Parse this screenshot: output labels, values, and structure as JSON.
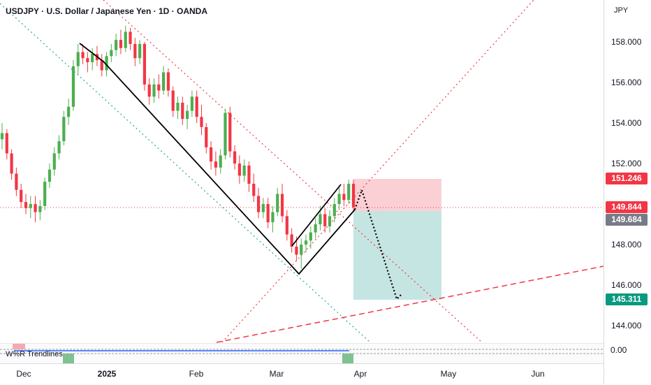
{
  "header": {
    "title": "USDJPY · U.S. Dollar / Japanese Yen · 1D · OANDA"
  },
  "yaxis": {
    "currency": "JPY",
    "ticks": [
      "158.000",
      "156.000",
      "154.000",
      "152.000",
      "148.000",
      "146.000",
      "144.000"
    ]
  },
  "price_badges": {
    "upper": {
      "label": "151.246",
      "color": "#f23645"
    },
    "current": {
      "label": "149.844",
      "color": "#f23645"
    },
    "entry": {
      "label": "149.684",
      "color": "#787b86"
    },
    "target": {
      "label": "145.311",
      "color": "#089981"
    }
  },
  "xaxis": {
    "ticks": [
      {
        "label": "Dec",
        "bold": false
      },
      {
        "label": "2025",
        "bold": true
      },
      {
        "label": "Feb",
        "bold": false
      },
      {
        "label": "Mar",
        "bold": false
      },
      {
        "label": "Apr",
        "bold": false
      },
      {
        "label": "May",
        "bold": false
      },
      {
        "label": "Jun",
        "bold": false
      }
    ]
  },
  "indicator": {
    "label": "W%R Trendlines",
    "zero_label": "0.00"
  },
  "colors": {
    "up": "#089981",
    "down": "#f23645",
    "candle_up": "#4caf50",
    "candle_down": "#f23645"
  },
  "chart_data": {
    "type": "candlestick",
    "title": "USDJPY · U.S. Dollar / Japanese Yen · 1D · OANDA",
    "ylim": [
      142.9,
      160.1
    ],
    "position": {
      "stop": 151.246,
      "entry": 149.684,
      "target": 145.311,
      "last": 149.844
    },
    "candles": [
      [
        153.2,
        154.0,
        152.7,
        153.5
      ],
      [
        153.5,
        153.7,
        152.2,
        152.5
      ],
      [
        152.5,
        152.7,
        151.2,
        151.5
      ],
      [
        151.5,
        151.8,
        150.4,
        150.7
      ],
      [
        150.7,
        151.0,
        149.8,
        150.1
      ],
      [
        150.1,
        150.5,
        149.5,
        149.8
      ],
      [
        149.8,
        150.4,
        149.3,
        150.0
      ],
      [
        150.0,
        150.4,
        149.1,
        149.6
      ],
      [
        149.6,
        150.2,
        149.2,
        149.9
      ],
      [
        149.9,
        151.3,
        149.7,
        151.1
      ],
      [
        151.1,
        152.0,
        150.8,
        151.7
      ],
      [
        151.7,
        152.8,
        151.4,
        152.5
      ],
      [
        152.5,
        153.4,
        152.2,
        153.1
      ],
      [
        153.1,
        154.6,
        152.9,
        154.3
      ],
      [
        154.3,
        155.2,
        153.9,
        154.8
      ],
      [
        154.8,
        157.1,
        154.6,
        156.8
      ],
      [
        156.8,
        157.9,
        156.4,
        157.5
      ],
      [
        157.5,
        157.9,
        156.9,
        157.2
      ],
      [
        157.2,
        157.5,
        156.5,
        157.0
      ],
      [
        157.0,
        157.7,
        156.6,
        157.4
      ],
      [
        157.4,
        157.8,
        156.8,
        157.1
      ],
      [
        157.1,
        157.4,
        156.3,
        156.6
      ],
      [
        156.6,
        157.5,
        156.3,
        157.3
      ],
      [
        157.3,
        157.9,
        157.0,
        157.6
      ],
      [
        157.6,
        158.4,
        157.3,
        158.1
      ],
      [
        158.1,
        158.6,
        157.4,
        157.7
      ],
      [
        157.7,
        158.8,
        157.5,
        158.5
      ],
      [
        158.5,
        158.7,
        157.6,
        157.9
      ],
      [
        157.9,
        158.2,
        156.8,
        157.2
      ],
      [
        157.2,
        158.1,
        156.9,
        157.9
      ],
      [
        157.9,
        158.0,
        155.6,
        155.9
      ],
      [
        155.9,
        156.2,
        154.9,
        155.3
      ],
      [
        155.3,
        156.2,
        155.0,
        155.9
      ],
      [
        155.9,
        156.4,
        155.2,
        155.6
      ],
      [
        155.6,
        156.8,
        155.4,
        156.5
      ],
      [
        156.5,
        156.7,
        155.3,
        155.6
      ],
      [
        155.6,
        155.8,
        154.3,
        154.6
      ],
      [
        154.6,
        155.3,
        154.2,
        155.0
      ],
      [
        155.0,
        155.3,
        153.9,
        154.2
      ],
      [
        154.2,
        154.9,
        153.7,
        154.6
      ],
      [
        154.6,
        155.6,
        154.3,
        155.3
      ],
      [
        155.3,
        155.6,
        154.0,
        154.3
      ],
      [
        154.3,
        154.9,
        153.4,
        153.8
      ],
      [
        153.8,
        154.0,
        152.5,
        152.8
      ],
      [
        152.8,
        153.1,
        151.7,
        152.1
      ],
      [
        152.1,
        152.6,
        151.4,
        151.8
      ],
      [
        151.8,
        152.7,
        151.5,
        152.4
      ],
      [
        152.4,
        154.7,
        152.2,
        154.5
      ],
      [
        154.5,
        154.8,
        152.3,
        152.6
      ],
      [
        152.6,
        152.9,
        151.7,
        152.0
      ],
      [
        152.0,
        152.4,
        151.0,
        151.4
      ],
      [
        151.4,
        152.2,
        151.1,
        151.9
      ],
      [
        151.9,
        152.1,
        150.6,
        151.0
      ],
      [
        151.0,
        151.5,
        150.1,
        150.4
      ],
      [
        150.4,
        150.8,
        149.3,
        149.6
      ],
      [
        149.6,
        150.3,
        149.3,
        150.0
      ],
      [
        150.0,
        150.3,
        148.8,
        149.1
      ],
      [
        149.1,
        149.9,
        148.6,
        149.6
      ],
      [
        149.6,
        150.8,
        149.4,
        150.5
      ],
      [
        150.5,
        151.0,
        149.1,
        149.4
      ],
      [
        149.4,
        149.7,
        148.2,
        148.5
      ],
      [
        148.5,
        148.8,
        147.6,
        147.9
      ],
      [
        147.9,
        148.4,
        147.2,
        147.5
      ],
      [
        147.5,
        148.3,
        146.8,
        148.0
      ],
      [
        148.0,
        148.5,
        147.6,
        148.2
      ],
      [
        148.2,
        148.9,
        147.8,
        148.6
      ],
      [
        148.6,
        149.3,
        148.3,
        149.0
      ],
      [
        149.0,
        149.9,
        148.7,
        149.5
      ],
      [
        149.5,
        149.8,
        148.6,
        148.9
      ],
      [
        148.9,
        149.7,
        148.6,
        149.4
      ],
      [
        149.4,
        150.3,
        149.1,
        150.0
      ],
      [
        150.0,
        150.8,
        149.7,
        150.5
      ],
      [
        150.5,
        151.0,
        149.9,
        150.2
      ],
      [
        150.2,
        151.2,
        150.0,
        151.0
      ],
      [
        151.0,
        151.2,
        149.7,
        149.844
      ]
    ]
  }
}
